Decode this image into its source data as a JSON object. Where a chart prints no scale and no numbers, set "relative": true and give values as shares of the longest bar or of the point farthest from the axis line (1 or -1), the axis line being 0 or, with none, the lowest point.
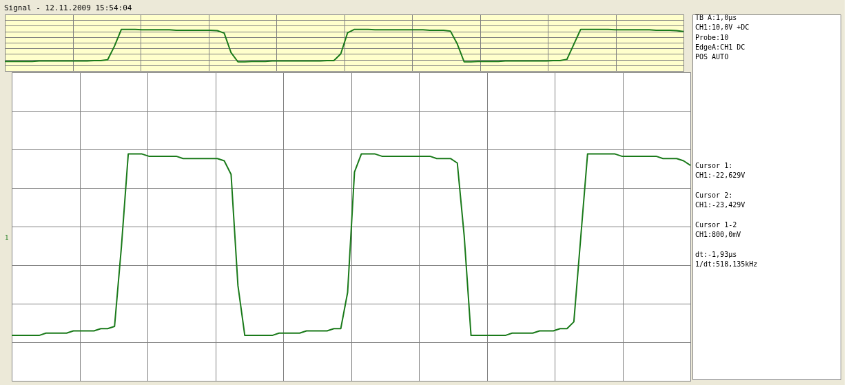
{
  "chart_data": [
    {
      "type": "line",
      "title": "Signal - 12.11.2009 15:54:04",
      "relative": true,
      "grid": true,
      "categories": [
        null,
        null,
        null,
        null,
        null,
        null,
        null,
        null,
        null,
        null,
        null,
        null,
        null,
        null,
        null,
        null,
        null,
        null,
        null,
        null,
        null,
        null,
        null,
        null,
        null,
        null,
        null,
        null,
        null,
        null,
        null,
        null,
        null,
        null,
        null,
        null,
        null,
        null,
        null,
        null,
        null,
        null,
        null,
        null,
        null,
        null,
        null,
        null,
        null,
        null,
        null,
        null,
        null,
        null,
        null,
        null,
        null,
        null,
        null,
        null,
        null,
        null,
        null,
        null,
        null,
        null,
        null,
        null,
        null,
        null,
        null,
        null,
        null,
        null,
        null,
        null,
        null,
        null,
        null,
        null,
        null,
        null,
        null,
        null,
        null,
        null,
        null,
        null,
        null,
        null,
        null,
        null,
        null,
        null,
        null,
        null,
        null,
        null,
        null,
        null
      ],
      "series": [
        {
          "color": "#1a7a1a",
          "values": [
            0.23,
            0.23,
            0.23,
            0.23,
            0.23,
            0.24,
            0.24,
            0.24,
            0.24,
            0.24,
            0.24,
            0.24,
            0.24,
            0.25,
            0.25,
            0.27,
            0.6,
            1.0,
            1.0,
            1.0,
            0.99,
            0.99,
            0.99,
            0.99,
            0.99,
            0.98,
            0.98,
            0.98,
            0.98,
            0.98,
            0.98,
            0.97,
            0.91,
            0.44,
            0.22,
            0.22,
            0.23,
            0.23,
            0.23,
            0.24,
            0.24,
            0.24,
            0.24,
            0.24,
            0.24,
            0.24,
            0.24,
            0.25,
            0.25,
            0.41,
            0.92,
            1.0,
            1.0,
            1.0,
            0.99,
            0.99,
            0.99,
            0.99,
            0.99,
            0.99,
            0.99,
            0.99,
            0.98,
            0.98,
            0.98,
            0.96,
            0.65,
            0.22,
            0.22,
            0.23,
            0.23,
            0.23,
            0.23,
            0.24,
            0.24,
            0.24,
            0.24,
            0.24,
            0.24,
            0.24,
            0.25,
            0.25,
            0.28,
            0.64,
            1.0,
            1.0,
            1.0,
            1.0,
            1.0,
            0.99,
            0.99,
            0.99,
            0.99,
            0.99,
            0.99,
            0.98,
            0.98,
            0.98,
            0.97,
            0.95
          ]
        }
      ]
    },
    {
      "type": "line",
      "relative": true,
      "grid": true,
      "categories": [
        null,
        null,
        null,
        null,
        null,
        null,
        null,
        null,
        null,
        null,
        null,
        null,
        null,
        null,
        null,
        null,
        null,
        null,
        null,
        null,
        null,
        null,
        null,
        null,
        null,
        null,
        null,
        null,
        null,
        null,
        null,
        null,
        null,
        null,
        null,
        null,
        null,
        null,
        null,
        null,
        null,
        null,
        null,
        null,
        null,
        null,
        null,
        null,
        null,
        null,
        null,
        null,
        null,
        null,
        null,
        null,
        null,
        null,
        null,
        null,
        null,
        null,
        null,
        null,
        null,
        null,
        null,
        null,
        null,
        null,
        null,
        null,
        null,
        null,
        null,
        null,
        null,
        null,
        null,
        null,
        null,
        null,
        null,
        null,
        null,
        null,
        null,
        null,
        null,
        null,
        null,
        null,
        null,
        null,
        null,
        null,
        null,
        null,
        null,
        null
      ],
      "series": [
        {
          "color": "#1a7a1a",
          "values": [
            0.2,
            0.2,
            0.2,
            0.2,
            0.2,
            0.21,
            0.21,
            0.21,
            0.21,
            0.22,
            0.22,
            0.22,
            0.22,
            0.23,
            0.23,
            0.24,
            0.59,
            1.0,
            1.0,
            1.0,
            0.99,
            0.99,
            0.99,
            0.99,
            0.99,
            0.98,
            0.98,
            0.98,
            0.98,
            0.98,
            0.98,
            0.97,
            0.91,
            0.42,
            0.2,
            0.2,
            0.2,
            0.2,
            0.2,
            0.21,
            0.21,
            0.21,
            0.21,
            0.22,
            0.22,
            0.22,
            0.22,
            0.23,
            0.23,
            0.39,
            0.92,
            1.0,
            1.0,
            1.0,
            0.99,
            0.99,
            0.99,
            0.99,
            0.99,
            0.99,
            0.99,
            0.99,
            0.98,
            0.98,
            0.98,
            0.96,
            0.64,
            0.2,
            0.2,
            0.2,
            0.2,
            0.2,
            0.2,
            0.21,
            0.21,
            0.21,
            0.21,
            0.22,
            0.22,
            0.22,
            0.23,
            0.23,
            0.26,
            0.63,
            1.0,
            1.0,
            1.0,
            1.0,
            1.0,
            0.99,
            0.99,
            0.99,
            0.99,
            0.99,
            0.99,
            0.98,
            0.98,
            0.98,
            0.97,
            0.95
          ]
        }
      ],
      "annotations": [
        "TB A:1,0µs",
        "CH1:10,0V +DC",
        "Probe:10",
        "EdgeA:CH1 DC",
        "POS AUTO",
        "Cursor 1:",
        "CH1:-22,629V",
        "Cursor 2:",
        "CH1:-23,429V",
        "Cursor 1-2",
        "CH1:800,0mV",
        "dt:-1,93µs",
        "1/dt:518,135kHz",
        "1"
      ]
    }
  ]
}
